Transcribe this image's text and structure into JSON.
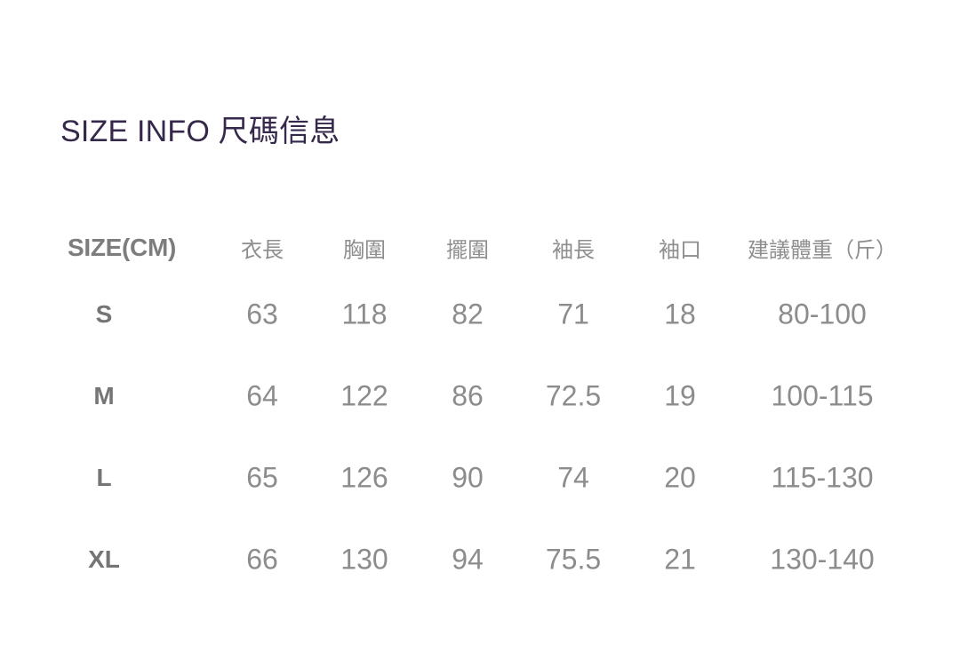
{
  "page": {
    "title": "SIZE INFO 尺碼信息"
  },
  "size_table": {
    "unit_header": "SIZE(CM)",
    "columns": [
      "衣長",
      "胸圍",
      "擺圍",
      "袖長",
      "袖口",
      "建議體重（斤）"
    ],
    "rows": [
      {
        "size": "S",
        "values": [
          "63",
          "118",
          "82",
          "71",
          "18",
          "80-100"
        ]
      },
      {
        "size": "M",
        "values": [
          "64",
          "122",
          "86",
          "72.5",
          "19",
          "100-115"
        ]
      },
      {
        "size": "L",
        "values": [
          "65",
          "126",
          "90",
          "74",
          "20",
          "115-130"
        ]
      },
      {
        "size": "XL",
        "values": [
          "66",
          "130",
          "94",
          "75.5",
          "21",
          "130-140"
        ]
      }
    ]
  },
  "colors": {
    "background": "#ffffff",
    "title_text": "#36284a",
    "header_text": "#8e8e8e",
    "unit_header_text": "#7d7d7d",
    "size_label_text": "#757575",
    "value_text": "#8c8c8c"
  }
}
